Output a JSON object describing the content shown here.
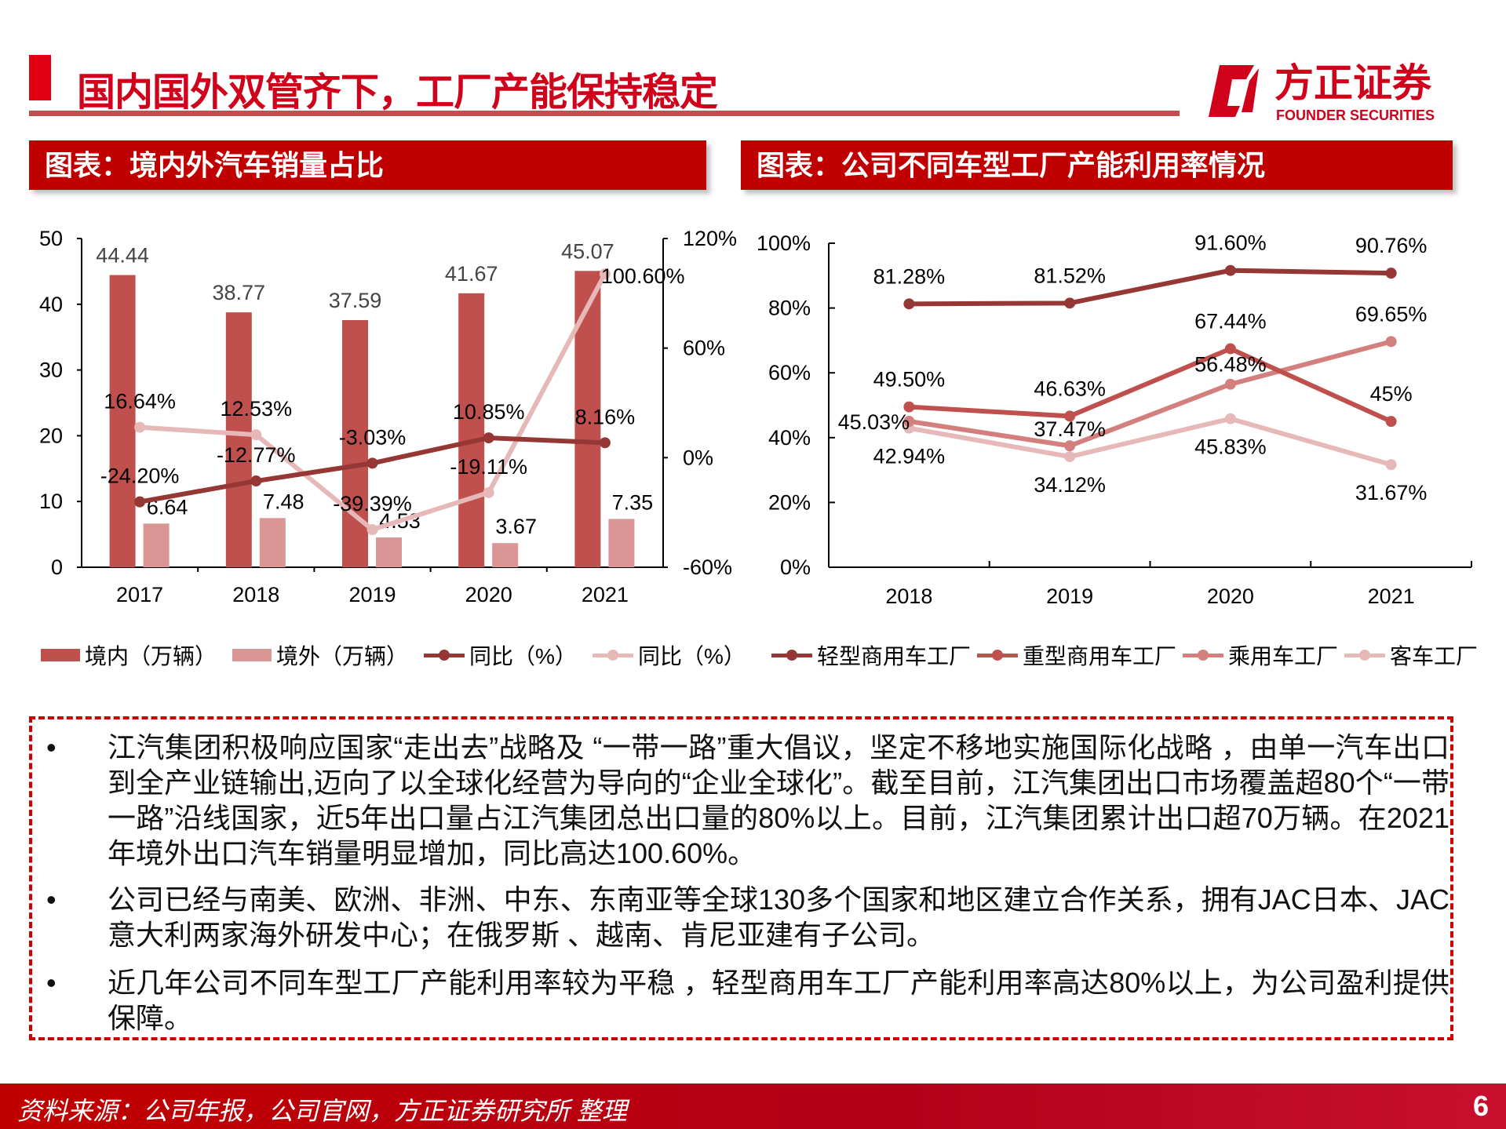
{
  "header": {
    "title": "国内国外双管齐下，工厂产能保持稳定",
    "logo_cn": "方正证券",
    "logo_en": "FOUNDER SECURITIES"
  },
  "panels": {
    "left_title": "图表：境内外汽车销量占比",
    "right_title": "图表：公司不同车型工厂产能利用率情况"
  },
  "chart_data": [
    {
      "type": "bar",
      "categories": [
        "2017",
        "2018",
        "2019",
        "2020",
        "2021"
      ],
      "series": [
        {
          "name": "境内（万辆）",
          "type": "bar",
          "axis": "left",
          "values": [
            44.44,
            38.77,
            37.59,
            41.67,
            45.07
          ],
          "labels": [
            "44.44",
            "38.77",
            "37.59",
            "41.67",
            "45.07"
          ],
          "color": "#c0504d"
        },
        {
          "name": "境外（万辆）",
          "type": "bar",
          "axis": "left",
          "values": [
            6.64,
            7.48,
            4.53,
            3.67,
            7.35
          ],
          "labels": [
            "6.64",
            "7.48",
            "4.53",
            "3.67",
            "7.35"
          ],
          "color": "#d99694"
        },
        {
          "name": "同比（%）",
          "type": "line",
          "axis": "right",
          "values": [
            -24.2,
            -12.77,
            -3.03,
            10.85,
            8.16
          ],
          "labels": [
            "-24.20%",
            "-12.77%",
            "-3.03%",
            "10.85%",
            "8.16%"
          ],
          "color": "#953735"
        },
        {
          "name": "同比（%）",
          "type": "line",
          "axis": "right",
          "values": [
            16.64,
            12.53,
            -39.39,
            -19.11,
            100.6
          ],
          "labels": [
            "16.64%",
            "12.53%",
            "-39.39%",
            "-19.11%",
            "100.60%"
          ],
          "color": "#e6b9b8"
        }
      ],
      "ylim_left": [
        0,
        50
      ],
      "yticks_left": [
        "0",
        "10",
        "20",
        "30",
        "40",
        "50"
      ],
      "ylim_right": [
        -60,
        120
      ],
      "yticks_right": [
        "-60%",
        "0%",
        "60%",
        "120%"
      ],
      "legend": "bottom",
      "grid": false
    },
    {
      "type": "line",
      "categories": [
        "2018",
        "2019",
        "2020",
        "2021"
      ],
      "series": [
        {
          "name": "轻型商用车工厂",
          "values": [
            81.28,
            81.52,
            91.6,
            90.76
          ],
          "labels": [
            "81.28%",
            "81.52%",
            "91.60%",
            "90.76%"
          ],
          "color": "#953735"
        },
        {
          "name": "重型商用车工厂",
          "values": [
            49.5,
            46.63,
            67.44,
            45
          ],
          "labels": [
            "49.50%",
            "46.63%",
            "67.44%",
            "45%"
          ],
          "color": "#c0504d"
        },
        {
          "name": "乘用车工厂",
          "values": [
            45.03,
            37.47,
            56.48,
            69.65
          ],
          "labels": [
            "45.03%",
            "37.47%",
            "56.48%",
            "69.65%"
          ],
          "color": "#d37f7d"
        },
        {
          "name": "客车工厂",
          "values": [
            42.94,
            34.12,
            45.83,
            31.67
          ],
          "labels": [
            "42.94%",
            "34.12%",
            "45.83%",
            "31.67%"
          ],
          "color": "#e6b9b8"
        }
      ],
      "ylim": [
        0,
        100
      ],
      "yticks": [
        "0%",
        "20%",
        "40%",
        "60%",
        "80%",
        "100%"
      ],
      "legend": "bottom",
      "grid": false
    }
  ],
  "text": {
    "bullet_symbol": "•",
    "bullets": [
      "江汽集团积极响应国家“走出去”战略及 “一带一路”重大倡议，坚定不移地实施国际化战略 ，由单一汽车出口到全产业链输出,迈向了以全球化经营为导向的“企业全球化”。截至目前，江汽集团出口市场覆盖超80个“一带一路”沿线国家，近5年出口量占江汽集团总出口量的80%以上。目前，江汽集团累计出口超70万辆。在2021年境外出口汽车销量明显增加，同比高达100.60%。",
      "公司已经与南美、欧洲、非洲、中东、东南亚等全球130多个国家和地区建立合作关系，拥有JAC日本、JAC意大利两家海外研发中心；在俄罗斯 、越南、肯尼亚建有子公司。",
      "近几年公司不同车型工厂产能利用率较为平稳 ，轻型商用车工厂产能利用率高达80%以上，为公司盈利提供保障。"
    ]
  },
  "footer": {
    "source": "资料来源：公司年报，公司官网，方正证券研究所 整理",
    "page": "6"
  }
}
